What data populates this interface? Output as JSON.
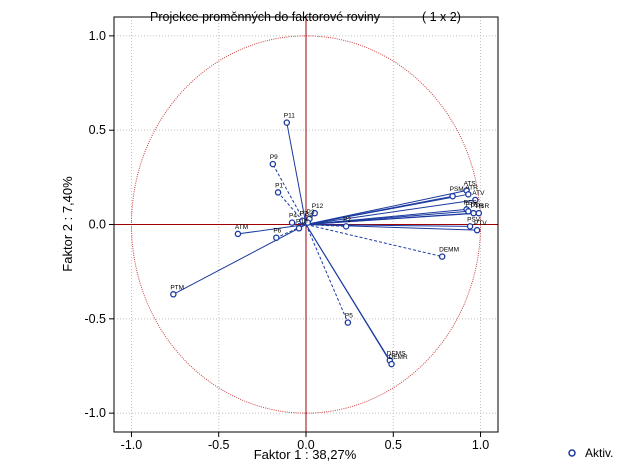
{
  "chart_data": {
    "type": "scatter",
    "title": "Projekce proměnných do faktorové roviny",
    "title_suffix": "( 1 x  2)",
    "xlabel": "Faktor 1 : 38,27%",
    "ylabel": "Faktor 2 :  7,40%",
    "xlim": [
      -1.1,
      1.1
    ],
    "ylim": [
      -1.1,
      1.1
    ],
    "xticks": [
      -1.0,
      -0.5,
      0.0,
      0.5,
      1.0
    ],
    "yticks": [
      -1.0,
      -0.5,
      0.0,
      0.5,
      1.0
    ],
    "x_tick_labels": [
      "-1.0",
      "-0.5",
      "0.0",
      "0.5",
      "1.0"
    ],
    "y_tick_labels": [
      "-1.0",
      "-0.5",
      "0.0",
      "0.5",
      "1.0"
    ],
    "grid": true,
    "unit_circle": true,
    "legend": {
      "label": "Aktiv.",
      "placement": "bottom-right"
    },
    "colors": {
      "circle": "#c84040",
      "axes": "#a00000",
      "vector": "#1a3aa0",
      "grid": "#c0c0c0"
    },
    "points": [
      {
        "name": "P11",
        "x": -0.11,
        "y": 0.54,
        "style": "solid"
      },
      {
        "name": "P9",
        "x": -0.19,
        "y": 0.32,
        "style": "dashed"
      },
      {
        "name": "P1",
        "x": -0.16,
        "y": 0.17,
        "style": "dashed"
      },
      {
        "name": "P12",
        "x": 0.05,
        "y": 0.06,
        "style": "dashed"
      },
      {
        "name": "P4",
        "x": -0.08,
        "y": 0.01,
        "style": "dashed"
      },
      {
        "name": "P6",
        "x": -0.17,
        "y": -0.07,
        "style": "dashed"
      },
      {
        "name": "P2",
        "x": 0.23,
        "y": -0.01,
        "style": "dashed"
      },
      {
        "name": "ATM",
        "x": -0.39,
        "y": -0.05,
        "style": "solid"
      },
      {
        "name": "PTM",
        "x": -0.76,
        "y": -0.37,
        "style": "solid"
      },
      {
        "name": "PSM",
        "x": 0.84,
        "y": 0.15,
        "style": "solid"
      },
      {
        "name": "ATS",
        "x": 0.92,
        "y": 0.18,
        "style": "solid"
      },
      {
        "name": "ATR",
        "x": 0.93,
        "y": 0.16,
        "style": "solid"
      },
      {
        "name": "ATV",
        "x": 0.97,
        "y": 0.13,
        "style": "solid"
      },
      {
        "name": "PSS",
        "x": 0.92,
        "y": 0.08,
        "style": "solid"
      },
      {
        "name": "PTS",
        "x": 0.93,
        "y": 0.07,
        "style": "solid"
      },
      {
        "name": "PTR",
        "x": 0.96,
        "y": 0.06,
        "style": "solid"
      },
      {
        "name": "PSR",
        "x": 0.99,
        "y": 0.06,
        "style": "solid"
      },
      {
        "name": "PSV",
        "x": 0.94,
        "y": -0.01,
        "style": "solid"
      },
      {
        "name": "PTV",
        "x": 0.98,
        "y": -0.03,
        "style": "solid"
      },
      {
        "name": "DEMM",
        "x": 0.78,
        "y": -0.17,
        "style": "dashed"
      },
      {
        "name": "P5",
        "x": 0.24,
        "y": -0.52,
        "style": "dashed"
      },
      {
        "name": "DEMS",
        "x": 0.48,
        "y": -0.72,
        "style": "solid"
      },
      {
        "name": "DEMR",
        "x": 0.49,
        "y": -0.74,
        "style": "solid"
      },
      {
        "name": "P3",
        "x": 0.02,
        "y": 0.03,
        "style": "dashed"
      },
      {
        "name": "P7",
        "x": -0.02,
        "y": 0.02,
        "style": "dashed"
      },
      {
        "name": "P8",
        "x": 0.01,
        "y": 0.01,
        "style": "dashed"
      },
      {
        "name": "P10",
        "x": -0.04,
        "y": -0.02,
        "style": "dashed"
      }
    ]
  }
}
